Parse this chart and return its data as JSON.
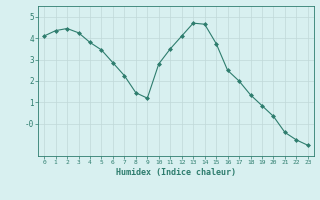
{
  "x": [
    0,
    1,
    2,
    3,
    4,
    5,
    6,
    7,
    8,
    9,
    10,
    11,
    12,
    13,
    14,
    15,
    16,
    17,
    18,
    19,
    20,
    21,
    22,
    23
  ],
  "y": [
    4.1,
    4.35,
    4.45,
    4.25,
    3.8,
    3.45,
    2.85,
    2.25,
    1.45,
    1.2,
    2.8,
    3.5,
    4.1,
    4.7,
    4.65,
    3.75,
    2.5,
    2.0,
    1.35,
    0.85,
    0.35,
    -0.4,
    -0.75,
    -1.0
  ],
  "line_color": "#2e7d6e",
  "marker": "D",
  "marker_size": 2,
  "bg_color": "#d8f0f0",
  "grid_color": "#c0d8d8",
  "tick_color": "#2e7d6e",
  "xlabel": "Humidex (Indice chaleur)",
  "xlim": [
    -0.5,
    23.5
  ],
  "ylim": [
    -1.5,
    5.5
  ],
  "yticks": [
    0,
    1,
    2,
    3,
    4,
    5
  ],
  "ytick_labels": [
    "-0",
    "1",
    "2",
    "3",
    "4",
    "5"
  ],
  "xticks": [
    0,
    1,
    2,
    3,
    4,
    5,
    6,
    7,
    8,
    9,
    10,
    11,
    12,
    13,
    14,
    15,
    16,
    17,
    18,
    19,
    20,
    21,
    22,
    23
  ]
}
